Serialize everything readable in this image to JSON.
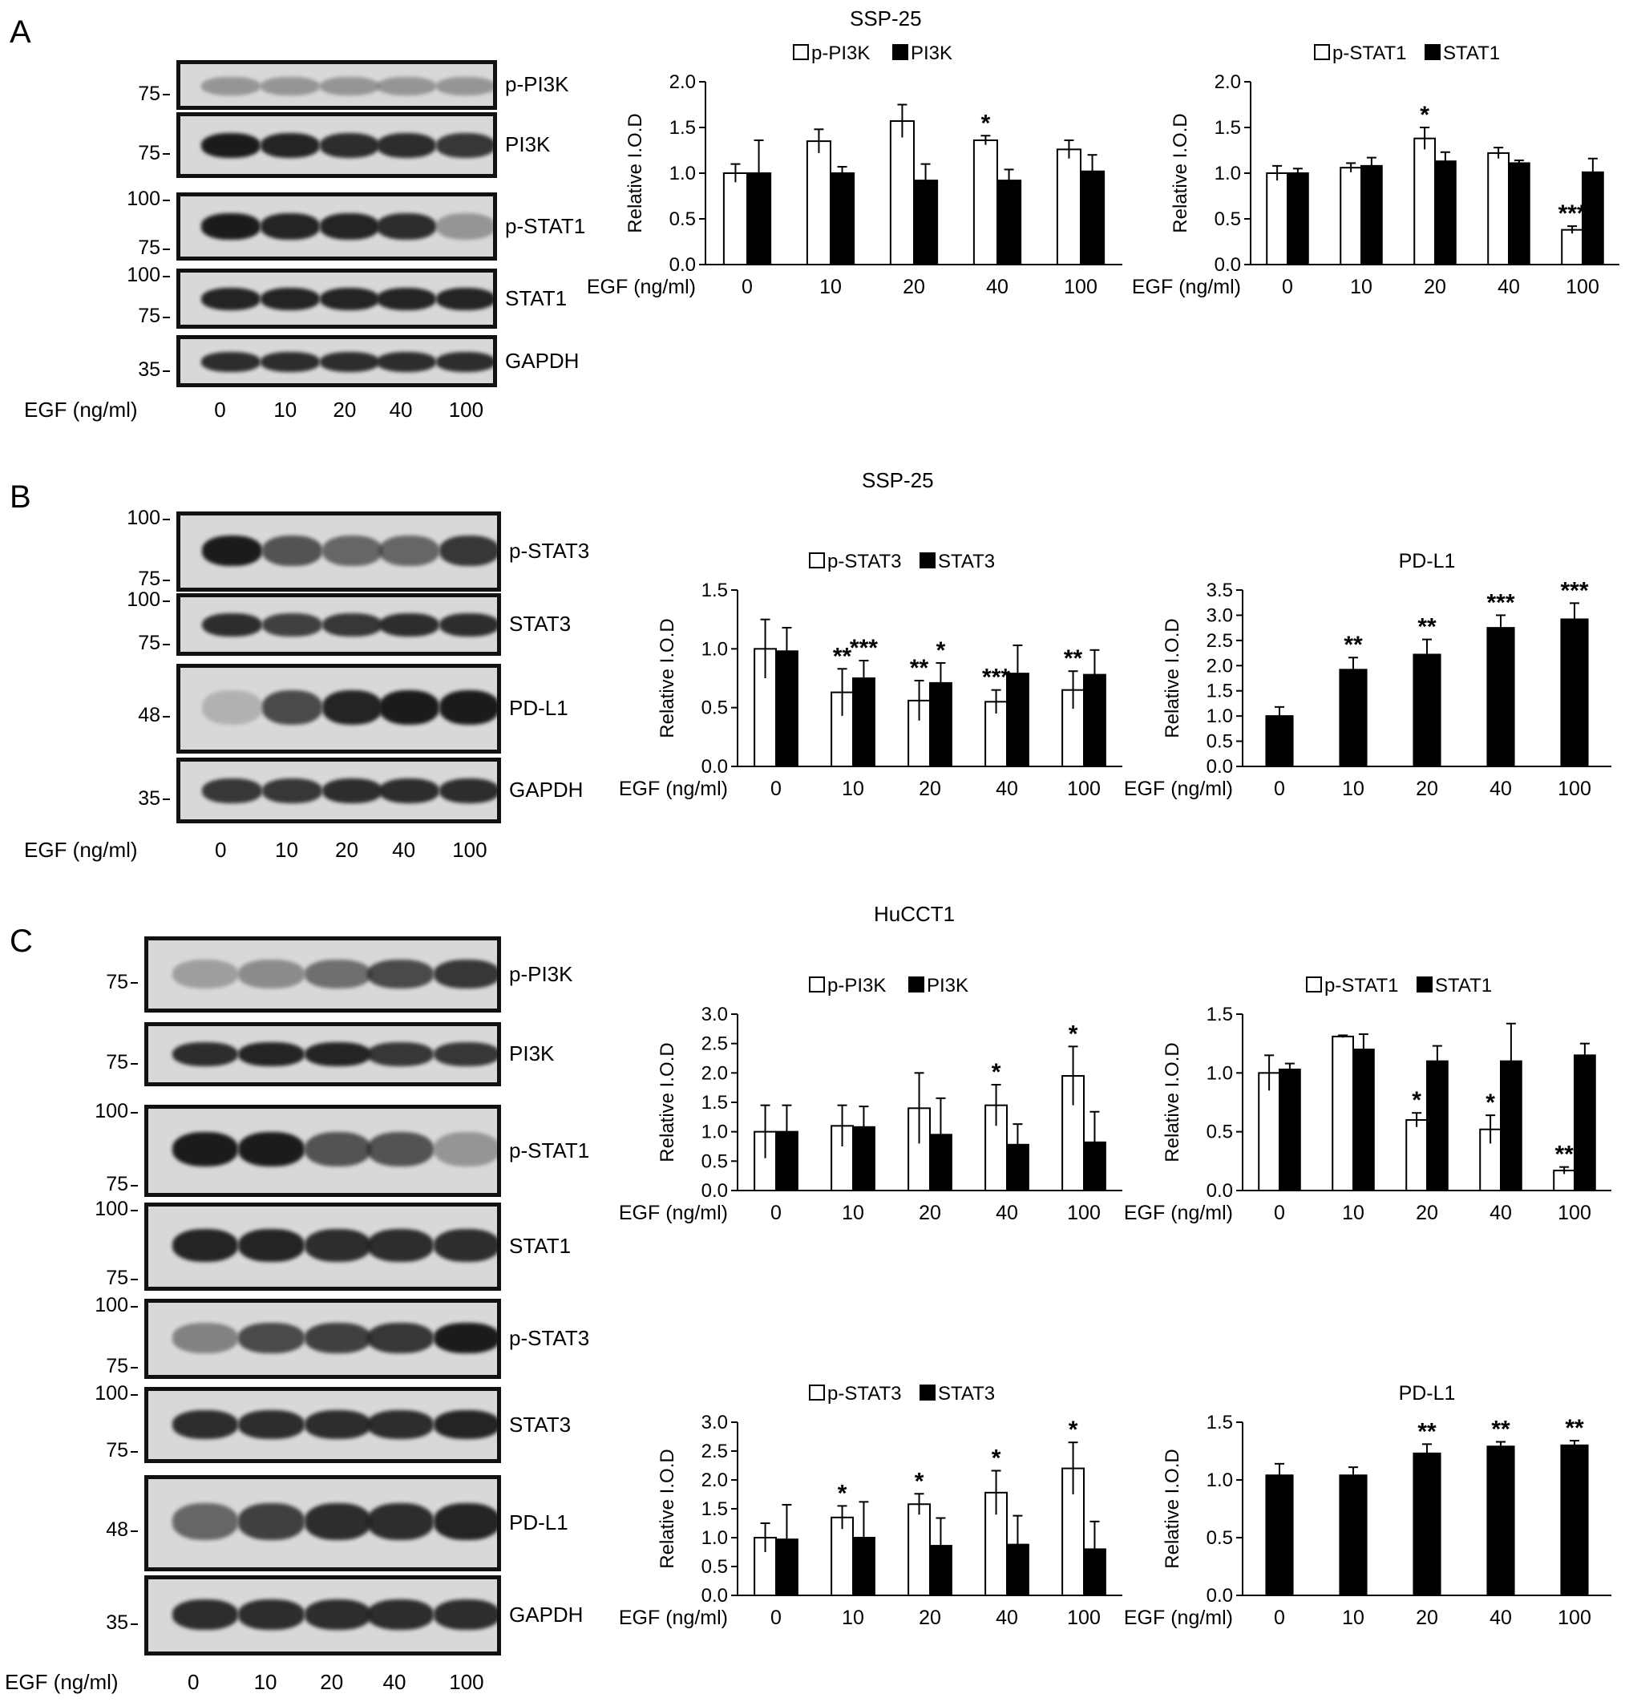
{
  "panels": [
    {
      "id": "A",
      "letter": "A",
      "title": "SSP-25"
    },
    {
      "id": "B",
      "letter": "B",
      "title": "SSP-25"
    },
    {
      "id": "C",
      "letter": "C",
      "title": "HuCCT1"
    }
  ],
  "lane_axis": {
    "label": "EGF (ng/ml)",
    "lanes": [
      "0",
      "10",
      "20",
      "40",
      "100"
    ]
  },
  "blots": {
    "A": [
      {
        "label": "p-PI3K",
        "markers": [
          "75"
        ],
        "intensity": [
          0.35,
          0.35,
          0.35,
          0.35,
          0.35
        ]
      },
      {
        "label": "PI3K",
        "markers": [
          "75"
        ],
        "intensity": [
          1,
          0.95,
          0.9,
          0.9,
          0.85
        ]
      },
      {
        "label": "p-STAT1",
        "markers": [
          "100",
          "75"
        ],
        "intensity": [
          1,
          0.95,
          0.95,
          0.9,
          0.35
        ]
      },
      {
        "label": "STAT1",
        "markers": [
          "100",
          "75"
        ],
        "intensity": [
          0.95,
          0.95,
          0.95,
          0.95,
          0.95
        ]
      },
      {
        "label": "GAPDH",
        "markers": [
          "35"
        ],
        "intensity": [
          0.9,
          0.9,
          0.9,
          0.9,
          0.9
        ]
      }
    ],
    "B": [
      {
        "label": "p-STAT3",
        "markers": [
          "100",
          "75"
        ],
        "intensity": [
          1,
          0.7,
          0.6,
          0.6,
          0.85
        ]
      },
      {
        "label": "STAT3",
        "markers": [
          "100",
          "75"
        ],
        "intensity": [
          0.9,
          0.8,
          0.85,
          0.9,
          0.9
        ]
      },
      {
        "label": "PD-L1",
        "markers": [
          "48"
        ],
        "intensity": [
          0.2,
          0.75,
          0.95,
          1,
          1
        ]
      },
      {
        "label": "GAPDH",
        "markers": [
          "35"
        ],
        "intensity": [
          0.85,
          0.85,
          0.9,
          0.9,
          0.9
        ]
      }
    ],
    "C": [
      {
        "label": "p-PI3K",
        "markers": [
          "75"
        ],
        "intensity": [
          0.3,
          0.4,
          0.55,
          0.75,
          0.85
        ]
      },
      {
        "label": "PI3K",
        "markers": [
          "75"
        ],
        "intensity": [
          0.9,
          0.95,
          0.95,
          0.85,
          0.85
        ]
      },
      {
        "label": "p-STAT1",
        "markers": [
          "100",
          "75"
        ],
        "intensity": [
          1,
          1,
          0.7,
          0.7,
          0.35
        ]
      },
      {
        "label": "STAT1",
        "markers": [
          "100",
          "75"
        ],
        "intensity": [
          0.95,
          0.95,
          0.9,
          0.9,
          0.9
        ]
      },
      {
        "label": "p-STAT3",
        "markers": [
          "100",
          "75"
        ],
        "intensity": [
          0.45,
          0.75,
          0.8,
          0.85,
          1
        ]
      },
      {
        "label": "STAT3",
        "markers": [
          "100",
          "75"
        ],
        "intensity": [
          0.9,
          0.9,
          0.9,
          0.9,
          0.95
        ]
      },
      {
        "label": "PD-L1",
        "markers": [
          "48"
        ],
        "intensity": [
          0.6,
          0.8,
          0.9,
          0.9,
          0.95
        ]
      },
      {
        "label": "GAPDH",
        "markers": [
          "35"
        ],
        "intensity": [
          0.9,
          0.9,
          0.9,
          0.9,
          0.9
        ]
      }
    ]
  },
  "chart_data": [
    {
      "id": "A1",
      "type": "bar",
      "ylabel": "Relative I.O.D",
      "xlabel": "EGF (ng/ml)",
      "categories": [
        "0",
        "10",
        "20",
        "40",
        "100"
      ],
      "ylim": [
        0,
        2.0
      ],
      "yticks": [
        "0.0",
        "0.5",
        "1.0",
        "1.5",
        "2.0"
      ],
      "series": [
        {
          "name": "p-PI3K",
          "fill": "#ffffff",
          "values": [
            1.0,
            1.35,
            1.57,
            1.36,
            1.26
          ],
          "errors": [
            0.1,
            0.13,
            0.18,
            0.05,
            0.1
          ],
          "sig": [
            "",
            "",
            "",
            "*",
            ""
          ]
        },
        {
          "name": "PI3K",
          "fill": "#000000",
          "values": [
            1.0,
            1.0,
            0.92,
            0.92,
            1.02
          ],
          "errors": [
            0.36,
            0.07,
            0.18,
            0.12,
            0.18
          ],
          "sig": [
            "",
            "",
            "",
            "",
            ""
          ]
        }
      ]
    },
    {
      "id": "A2",
      "type": "bar",
      "ylabel": "Relative I.O.D",
      "xlabel": "EGF (ng/ml)",
      "categories": [
        "0",
        "10",
        "20",
        "40",
        "100"
      ],
      "ylim": [
        0,
        2.0
      ],
      "yticks": [
        "0.0",
        "0.5",
        "1.0",
        "1.5",
        "2.0"
      ],
      "series": [
        {
          "name": "p-STAT1",
          "fill": "#ffffff",
          "values": [
            1.0,
            1.06,
            1.38,
            1.22,
            0.38
          ],
          "errors": [
            0.08,
            0.05,
            0.12,
            0.06,
            0.04
          ],
          "sig": [
            "",
            "",
            "*",
            "",
            "***"
          ]
        },
        {
          "name": "STAT1",
          "fill": "#000000",
          "values": [
            1.0,
            1.08,
            1.13,
            1.11,
            1.01
          ],
          "errors": [
            0.05,
            0.09,
            0.1,
            0.03,
            0.15
          ],
          "sig": [
            "",
            "",
            "",
            "",
            ""
          ]
        }
      ]
    },
    {
      "id": "B1",
      "type": "bar",
      "ylabel": "Relative I.O.D",
      "xlabel": "EGF (ng/ml)",
      "categories": [
        "0",
        "10",
        "20",
        "40",
        "100"
      ],
      "ylim": [
        0,
        1.5
      ],
      "yticks": [
        "0.0",
        "0.5",
        "1.0",
        "1.5"
      ],
      "series": [
        {
          "name": "p-STAT3",
          "fill": "#ffffff",
          "values": [
            1.0,
            0.63,
            0.56,
            0.55,
            0.65
          ],
          "errors": [
            0.25,
            0.2,
            0.17,
            0.1,
            0.16
          ],
          "sig": [
            "",
            "**",
            "**",
            "***",
            "**"
          ]
        },
        {
          "name": "STAT3",
          "fill": "#000000",
          "values": [
            0.98,
            0.75,
            0.71,
            0.79,
            0.78
          ],
          "errors": [
            0.2,
            0.15,
            0.17,
            0.24,
            0.21
          ],
          "sig": [
            "",
            "***",
            "*",
            "",
            ""
          ]
        }
      ]
    },
    {
      "id": "B2",
      "type": "bar",
      "title": "PD-L1",
      "ylabel": "Relative I.O.D",
      "xlabel": "EGF (ng/ml)",
      "categories": [
        "0",
        "10",
        "20",
        "40",
        "100"
      ],
      "ylim": [
        0,
        3.5
      ],
      "yticks": [
        "0.0",
        "0.5",
        "1.0",
        "1.5",
        "2.0",
        "2.5",
        "3.0",
        "3.5"
      ],
      "series": [
        {
          "name": "PD-L1",
          "fill": "#000000",
          "values": [
            1.0,
            1.92,
            2.22,
            2.75,
            2.92
          ],
          "errors": [
            0.18,
            0.24,
            0.3,
            0.25,
            0.32
          ],
          "sig": [
            "",
            "**",
            "**",
            "***",
            "***"
          ]
        }
      ]
    },
    {
      "id": "C1",
      "type": "bar",
      "ylabel": "Relative I.O.D",
      "xlabel": "EGF (ng/ml)",
      "categories": [
        "0",
        "10",
        "20",
        "40",
        "100"
      ],
      "ylim": [
        0,
        3.0
      ],
      "yticks": [
        "0.0",
        "0.5",
        "1.0",
        "1.5",
        "2.0",
        "2.5",
        "3.0"
      ],
      "series": [
        {
          "name": "p-PI3K",
          "fill": "#ffffff",
          "values": [
            1.0,
            1.1,
            1.4,
            1.45,
            1.95
          ],
          "errors": [
            0.45,
            0.35,
            0.6,
            0.35,
            0.5
          ],
          "sig": [
            "",
            "",
            "",
            "*",
            "*"
          ]
        },
        {
          "name": "PI3K",
          "fill": "#000000",
          "values": [
            1.0,
            1.08,
            0.95,
            0.78,
            0.82
          ],
          "errors": [
            0.45,
            0.35,
            0.62,
            0.35,
            0.52
          ],
          "sig": [
            "",
            "",
            "",
            "",
            ""
          ]
        }
      ]
    },
    {
      "id": "C2",
      "type": "bar",
      "ylabel": "Relative I.O.D",
      "xlabel": "EGF (ng/ml)",
      "categories": [
        "0",
        "10",
        "20",
        "40",
        "100"
      ],
      "ylim": [
        0,
        1.5
      ],
      "yticks": [
        "0.0",
        "0.5",
        "1.0",
        "1.5"
      ],
      "series": [
        {
          "name": "p-STAT1",
          "fill": "#ffffff",
          "values": [
            1.0,
            1.31,
            0.6,
            0.52,
            0.17
          ],
          "errors": [
            0.15,
            0.01,
            0.06,
            0.12,
            0.03
          ],
          "sig": [
            "",
            "",
            "*",
            "*",
            "**"
          ]
        },
        {
          "name": "STAT1",
          "fill": "#000000",
          "values": [
            1.03,
            1.2,
            1.1,
            1.1,
            1.15
          ],
          "errors": [
            0.05,
            0.13,
            0.13,
            0.32,
            0.1
          ],
          "sig": [
            "",
            "",
            "",
            "",
            ""
          ]
        }
      ]
    },
    {
      "id": "C3",
      "type": "bar",
      "ylabel": "Relative I.O.D",
      "xlabel": "EGF (ng/ml)",
      "categories": [
        "0",
        "10",
        "20",
        "40",
        "100"
      ],
      "ylim": [
        0,
        3.0
      ],
      "yticks": [
        "0.0",
        "0.5",
        "1.0",
        "1.5",
        "2.0",
        "2.5",
        "3.0"
      ],
      "series": [
        {
          "name": "p-STAT3",
          "fill": "#ffffff",
          "values": [
            1.0,
            1.35,
            1.58,
            1.78,
            2.2
          ],
          "errors": [
            0.25,
            0.2,
            0.18,
            0.38,
            0.45
          ],
          "sig": [
            "",
            "*",
            "*",
            "*",
            "*"
          ]
        },
        {
          "name": "STAT3",
          "fill": "#000000",
          "values": [
            0.97,
            1.0,
            0.86,
            0.88,
            0.8
          ],
          "errors": [
            0.6,
            0.62,
            0.48,
            0.5,
            0.48
          ],
          "sig": [
            "",
            "",
            "",
            "",
            ""
          ]
        }
      ]
    },
    {
      "id": "C4",
      "type": "bar",
      "title": "PD-L1",
      "ylabel": "Relative I.O.D",
      "xlabel": "EGF (ng/ml)",
      "categories": [
        "0",
        "10",
        "20",
        "40",
        "100"
      ],
      "ylim": [
        0,
        1.5
      ],
      "yticks": [
        "0.0",
        "0.5",
        "1.0",
        "1.5"
      ],
      "series": [
        {
          "name": "PD-L1",
          "fill": "#000000",
          "values": [
            1.04,
            1.04,
            1.23,
            1.29,
            1.3
          ],
          "errors": [
            0.1,
            0.07,
            0.08,
            0.04,
            0.04
          ],
          "sig": [
            "",
            "",
            "**",
            "**",
            "**"
          ]
        }
      ]
    }
  ]
}
